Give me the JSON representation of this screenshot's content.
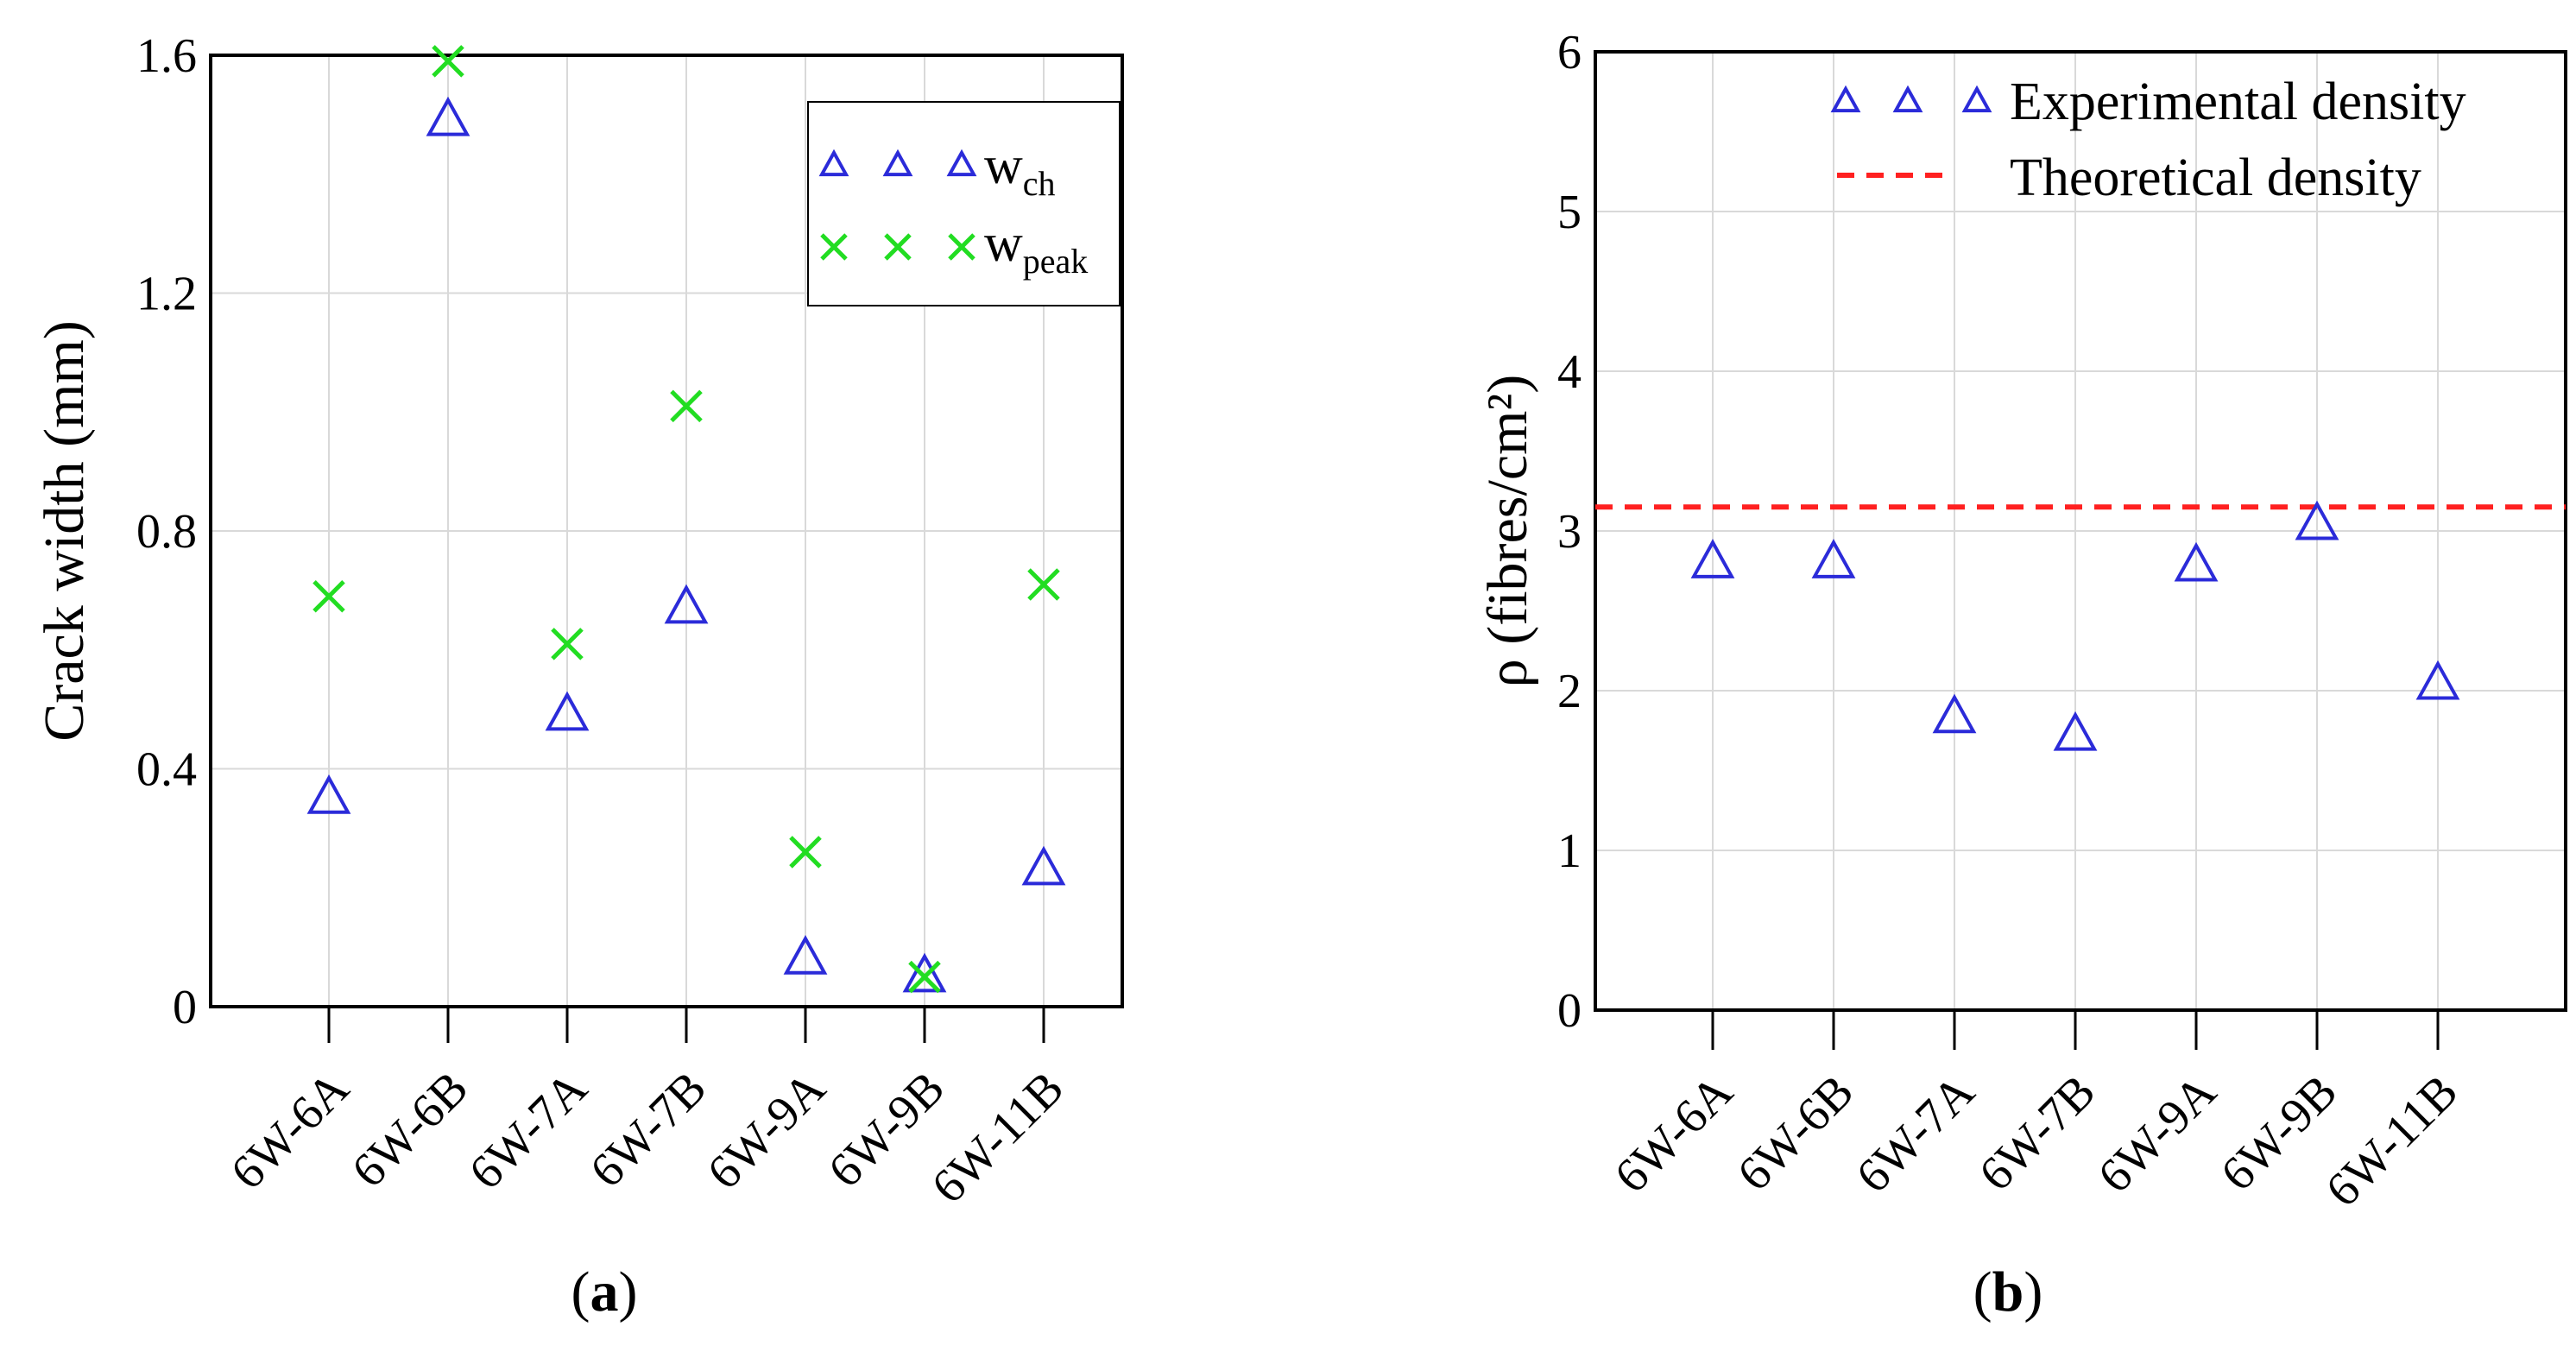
{
  "chart_data": [
    {
      "type": "scatter",
      "panel_label": "a",
      "title": "",
      "xlabel": "",
      "ylabel": "Crack width (mm)",
      "categories": [
        "6W-6A",
        "6W-6B",
        "6W-7A",
        "6W-7B",
        "6W-9A",
        "6W-9B",
        "6W-11B"
      ],
      "ylim": [
        0,
        1.6
      ],
      "yticks": [
        "0",
        "0.4",
        "0.8",
        "1.2",
        "1.6"
      ],
      "grid": true,
      "legend_position": "top-right",
      "series": [
        {
          "name": "w",
          "subscript": "ch",
          "marker": "triangle",
          "color": "#2b2bd9",
          "values": [
            0.35,
            1.49,
            0.49,
            0.67,
            0.08,
            0.05,
            0.23
          ]
        },
        {
          "name": "w",
          "subscript": "peak",
          "marker": "x",
          "color": "#22dd22",
          "values": [
            0.69,
            1.59,
            0.61,
            1.01,
            0.26,
            0.05,
            0.71
          ]
        }
      ]
    },
    {
      "type": "scatter",
      "panel_label": "b",
      "title": "",
      "xlabel": "",
      "ylabel": "ρ (fibres/cm²)",
      "categories": [
        "6W-6A",
        "6W-6B",
        "6W-7A",
        "6W-7B",
        "6W-9A",
        "6W-9B",
        "6W-11B"
      ],
      "ylim": [
        0,
        6
      ],
      "yticks": [
        "0",
        "1",
        "2",
        "3",
        "4",
        "5",
        "6"
      ],
      "grid": true,
      "legend_position": "top-right",
      "series": [
        {
          "name": "Experimental density",
          "marker": "triangle",
          "color": "#2b2bd9",
          "values": [
            2.8,
            2.8,
            1.83,
            1.72,
            2.78,
            3.04,
            2.04
          ]
        }
      ],
      "reference_lines": [
        {
          "name": "Theoretical density",
          "style": "dashed",
          "color": "#ff2020",
          "value": 3.15
        }
      ]
    }
  ]
}
